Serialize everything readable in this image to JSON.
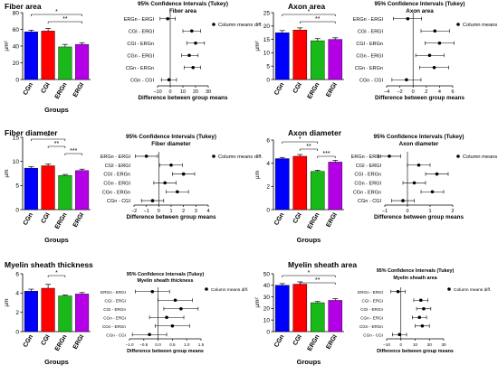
{
  "colors": {
    "CGn": "#0000ff",
    "CGI": "#ff0000",
    "ERGn": "#19b919",
    "ERGI": "#b400e6",
    "axis": "#000000",
    "error_bar": "#000000"
  },
  "chart_data": [
    {
      "type": "bar",
      "title": "Fiber area",
      "categories": [
        "CGn",
        "CGI",
        "ERGn",
        "ERGI"
      ],
      "values": [
        57,
        58,
        39,
        42
      ],
      "errors": [
        2,
        3,
        3,
        2
      ],
      "xlabel": "Groups",
      "ylabel": "µm²",
      "ylim": [
        0,
        80
      ],
      "yticks": [
        0,
        20,
        40,
        60,
        80
      ],
      "significance": [
        {
          "from": "CGn",
          "to": "ERGI",
          "label": "*"
        },
        {
          "from": "CGI",
          "to": "ERGI",
          "label": "**"
        }
      ]
    },
    {
      "type": "scatter",
      "title": "95% Confidence Intervals (Tukey)",
      "subtitle": "Fiber area",
      "legend": "Column means diff.",
      "xlabel": "Difference between group means",
      "categories": [
        "ERGn - ERGI",
        "CGI - ERGI",
        "CGI - ERGn",
        "CGn - ERGI",
        "CGn - ERGn",
        "CGn - CGI"
      ],
      "values": [
        -2,
        17,
        20,
        15,
        18,
        -1
      ],
      "ci": [
        [
          -8,
          4
        ],
        [
          10,
          24
        ],
        [
          13,
          27
        ],
        [
          9,
          22
        ],
        [
          11,
          24
        ],
        [
          -7,
          5
        ]
      ],
      "xlim": [
        -10,
        30
      ],
      "xticks": [
        -10,
        0,
        10,
        20,
        30
      ]
    },
    {
      "type": "bar",
      "title": "Axon area",
      "categories": [
        "CGn",
        "CGI",
        "ERGn",
        "ERGI"
      ],
      "values": [
        17.5,
        18.5,
        14.5,
        15
      ],
      "errors": [
        0.8,
        0.8,
        0.8,
        0.6
      ],
      "xlabel": "",
      "ylabel": "µm²",
      "ylim": [
        0,
        25
      ],
      "yticks": [
        0,
        5,
        10,
        15,
        20,
        25
      ],
      "significance": [
        {
          "from": "CGn",
          "to": "ERGI",
          "label": "*"
        },
        {
          "from": "CGI",
          "to": "ERGI",
          "label": "**"
        }
      ]
    },
    {
      "type": "scatter",
      "title": "95% Confidence Intervals (Tukey)",
      "subtitle": "Axon area",
      "legend": "Column means diff.",
      "xlabel": "Difference between group means",
      "categories": [
        "ERGn - ERGI",
        "CGI - ERGI",
        "CGI - ERGn",
        "CGn - ERGI",
        "CGn - ERGn",
        "CGn - CGI"
      ],
      "values": [
        -0.8,
        3.3,
        4,
        2.5,
        3.2,
        -1
      ],
      "ci": [
        [
          -3,
          1.3
        ],
        [
          1.2,
          5.5
        ],
        [
          1.8,
          6.2
        ],
        [
          0.4,
          4.7
        ],
        [
          1,
          5.4
        ],
        [
          -3.2,
          1.2
        ]
      ],
      "xlim": [
        -4,
        6
      ],
      "xticks": [
        -4,
        -2,
        0,
        2,
        4,
        6
      ]
    },
    {
      "type": "bar",
      "title": "Fiber diameter",
      "categories": [
        "CGn",
        "CGI",
        "ERGn",
        "ERGI"
      ],
      "values": [
        8.6,
        9.1,
        7.1,
        8.1
      ],
      "errors": [
        0.3,
        0.4,
        0.2,
        0.3
      ],
      "xlabel": "Groups",
      "ylabel": "µm",
      "ylim": [
        0,
        15
      ],
      "yticks": [
        0,
        5,
        10,
        15
      ],
      "significance": [
        {
          "from": "CGn",
          "to": "ERGn",
          "label": "*"
        },
        {
          "from": "CGI",
          "to": "ERGn",
          "label": "**"
        },
        {
          "from": "ERGn",
          "to": "ERGI",
          "label": "***"
        }
      ]
    },
    {
      "type": "scatter",
      "title": "95% Confidence Intervals (Tukey)",
      "subtitle": "Fiber diameter",
      "legend": "Column means diff.",
      "xlabel": "Difference between group means",
      "categories": [
        "ERGn - ERGI",
        "CGI - ERGI",
        "CGI - ERGn",
        "CGn - ERGI",
        "CGn - ERGn",
        "CGn - CGI"
      ],
      "values": [
        -1,
        1,
        2,
        0.5,
        1.5,
        -0.5
      ],
      "ci": [
        [
          -1.9,
          -0.1
        ],
        [
          0.1,
          1.9
        ],
        [
          1.1,
          2.9
        ],
        [
          -0.4,
          1.4
        ],
        [
          0.6,
          2.4
        ],
        [
          -1.4,
          0.4
        ]
      ],
      "xlim": [
        -2,
        4
      ],
      "xticks": [
        -2,
        -1,
        0,
        1,
        2,
        3,
        4
      ]
    },
    {
      "type": "bar",
      "title": "Axon diameter",
      "categories": [
        "CGn",
        "CGI",
        "ERGn",
        "ERGI"
      ],
      "values": [
        4.4,
        4.6,
        3.3,
        4.1
      ],
      "errors": [
        0.1,
        0.15,
        0.1,
        0.15
      ],
      "xlabel": "Groups",
      "ylabel": "µm",
      "ylim": [
        0,
        6
      ],
      "yticks": [
        0,
        2,
        4,
        6
      ],
      "significance": [
        {
          "from": "CGn",
          "to": "ERGn",
          "label": "*"
        },
        {
          "from": "CGI",
          "to": "ERGn",
          "label": "**"
        },
        {
          "from": "ERGn",
          "to": "ERGI",
          "label": "***"
        }
      ]
    },
    {
      "type": "scatter",
      "title": "95% Confidence Intervals (Tukey)",
      "subtitle": "Axon diameter",
      "legend": "Column means diff.",
      "xlabel": "Difference between group means",
      "categories": [
        "ERGn - ERGI",
        "CGI - ERGI",
        "CGI - ERGn",
        "CGn - ERGI",
        "CGn - ERGn",
        "CGn - CGI"
      ],
      "values": [
        -0.8,
        0.5,
        1.3,
        0.3,
        1.1,
        -0.2
      ],
      "ci": [
        [
          -1.3,
          -0.3
        ],
        [
          0,
          1
        ],
        [
          0.8,
          1.8
        ],
        [
          -0.2,
          0.8
        ],
        [
          0.6,
          1.6
        ],
        [
          -0.7,
          0.3
        ]
      ],
      "xlim": [
        -1,
        2
      ],
      "xticks": [
        -1,
        0,
        1,
        2
      ]
    },
    {
      "type": "bar",
      "title": "Myelin sheath thickness",
      "categories": [
        "CGn",
        "CGI",
        "ERGn",
        "ERGI"
      ],
      "values": [
        4.2,
        4.5,
        3.7,
        3.9
      ],
      "errors": [
        0.2,
        0.4,
        0.1,
        0.15
      ],
      "xlabel": "Groups",
      "ylabel": "µm",
      "ylim": [
        0,
        6
      ],
      "yticks": [
        0,
        2,
        4,
        6
      ],
      "significance": [
        {
          "from": "CGI",
          "to": "ERGn",
          "label": "*"
        }
      ]
    },
    {
      "type": "scatter",
      "title": "95% Confidence Intervals (Tukey)",
      "subtitle": "Myelin sheath thickness",
      "legend": "Column means diff.",
      "xlabel": "Difference between group means",
      "categories": [
        "ERGn - ERGI",
        "CGI - ERGI",
        "CGI - ERGn",
        "CGn - ERGI",
        "CGn - ERGn",
        "CGn - CGI"
      ],
      "values": [
        -0.2,
        0.6,
        0.8,
        0.3,
        0.5,
        -0.3
      ],
      "ci": [
        [
          -0.8,
          0.4
        ],
        [
          0,
          1.2
        ],
        [
          0.2,
          1.4
        ],
        [
          -0.3,
          0.9
        ],
        [
          -0.1,
          1.1
        ],
        [
          -0.9,
          0.3
        ]
      ],
      "xlim": [
        -1,
        1.5
      ],
      "xticks": [
        -1,
        -0.5,
        0,
        0.5,
        1,
        1.5
      ],
      "xticklabels": [
        "−1.0",
        "−0.5",
        "0.0",
        "0.5",
        "1.0",
        "1.5"
      ]
    },
    {
      "type": "bar",
      "title": "Myelin sheath area",
      "categories": [
        "CGn",
        "CGI",
        "ERGn",
        "ERGI"
      ],
      "values": [
        40,
        41,
        25,
        27
      ],
      "errors": [
        1.5,
        2,
        1,
        1.5
      ],
      "xlabel": "Groups",
      "ylabel": "µm²",
      "ylim": [
        0,
        50
      ],
      "yticks": [
        0,
        10,
        20,
        30,
        40,
        50
      ],
      "significance": [
        {
          "from": "CGn",
          "to": "ERGI",
          "label": "*"
        },
        {
          "from": "CGI",
          "to": "ERGI",
          "label": "**"
        }
      ]
    },
    {
      "type": "scatter",
      "title": "95% Confidence Intervals (Tukey)",
      "subtitle": "Myelin sheath area",
      "legend": "Column means diff.",
      "xlabel": "Difference between group means",
      "categories": [
        "ERGn - ERGI",
        "CGI - ERGI",
        "CGI - ERGn",
        "CGn - ERGI",
        "CGn - ERGn",
        "CGn - CGI"
      ],
      "values": [
        -2,
        14,
        16,
        13,
        15,
        -1
      ],
      "ci": [
        [
          -7,
          3
        ],
        [
          9,
          19
        ],
        [
          11,
          21
        ],
        [
          8,
          18
        ],
        [
          10,
          20
        ],
        [
          -6,
          4
        ]
      ],
      "xlim": [
        -10,
        30
      ],
      "xticks": [
        -10,
        0,
        10,
        20,
        30
      ]
    }
  ]
}
